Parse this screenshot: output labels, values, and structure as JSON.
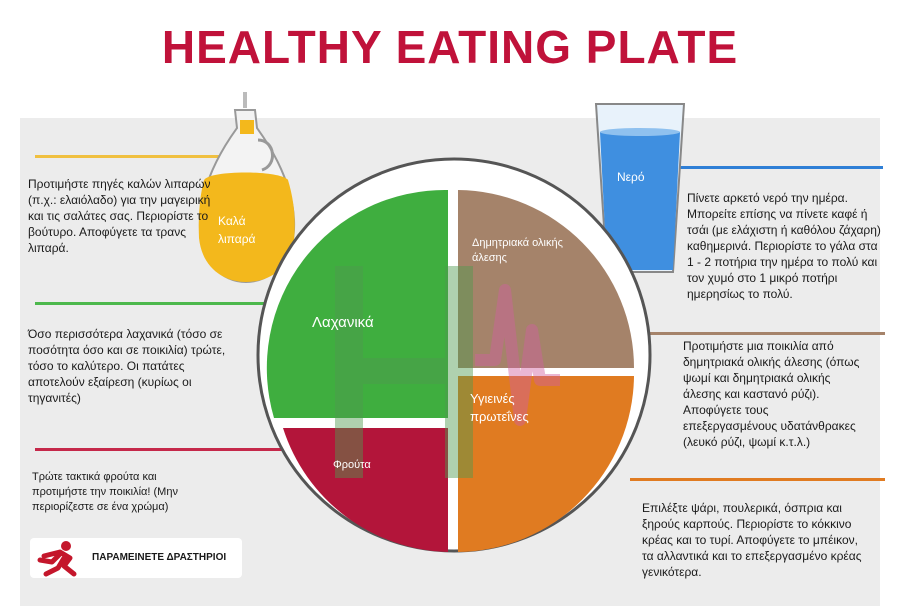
{
  "title": "HEALTHY EATING PLATE",
  "colors": {
    "title": "#c0123a",
    "oil": "#f3b81c",
    "water": "#3f8fe0",
    "grains": "#a5836a",
    "protein": "#e07b21",
    "vegetables": "#3fae3f",
    "fruits": "#b3153a",
    "active": "#c4162b",
    "divider_oil": "#f0c040",
    "divider_veg": "#4cb84c",
    "divider_fruit": "#c5284a",
    "divider_water": "#2f7fd6",
    "divider_grain": "#a5836a",
    "divider_protein": "#e07b21"
  },
  "labels": {
    "oil": "Καλά λιπαρά",
    "water": "Νερό",
    "vegetables": "Λαχανικά",
    "fruits": "Φρούτα",
    "grains": "Δημητριακά ολικής άλεσης",
    "protein": "Υγιεινές πρωτεΐνες"
  },
  "texts": {
    "oil": "Προτιμήστε πηγές καλών λιπαρών (π.χ.: ελαιόλαδο) για την μαγειρική και τις σαλάτες σας. Περιορίστε το βούτυρο. Αποφύγετε τα τρανς λιπαρά.",
    "vegetables": "Όσο περισσότερα λαχανικά (τόσο σε ποσότητα όσο και σε ποικιλία) τρώτε, τόσο το καλύτερο. Οι πατάτες αποτελούν εξαίρεση (κυρίως οι τηγανιτές)",
    "fruits": "Τρώτε τακτικά φρούτα και προτιμήστε την ποικιλία! (Μην περιορίζεστε σε ένα χρώμα)",
    "water": "Πίνετε αρκετό νερό την ημέρα. Μπορείτε επίσης να πίνετε καφέ ή τσάι (με ελάχιστη ή καθόλου ζάχαρη) καθημερινά. Περιορίστε το γάλα στα 1 - 2 ποτήρια την ημέρα το πολύ και τον χυμό στο 1 μικρό ποτήρι ημερησίως το πολύ.",
    "grains": "Προτιμήστε μια ποικιλία από δημητριακά ολικής άλεσης (όπως ψωμί και δημητριακά ολικής άλεσης και καστανό ρύζι). Αποφύγετε τους επεξεργασμένους υδατάνθρακες (λευκό ρύζι, ψωμί κ.τ.λ.)",
    "protein": "Επιλέξτε ψάρι, πουλερικά, όσπρια και ξηρούς καρπούς. Περιορίστε το κόκκινο κρέας και το τυρί. Αποφύγετε το μπέικον, τα αλλαντικά και το επεξεργασμένο κρέας γενικότερα."
  },
  "badge": {
    "text": "ΠΑΡΑΜΕΙΝΕΤΕ ΔΡΑΣΤΗΡΙΟΙ",
    "icon": "running-person-icon"
  }
}
